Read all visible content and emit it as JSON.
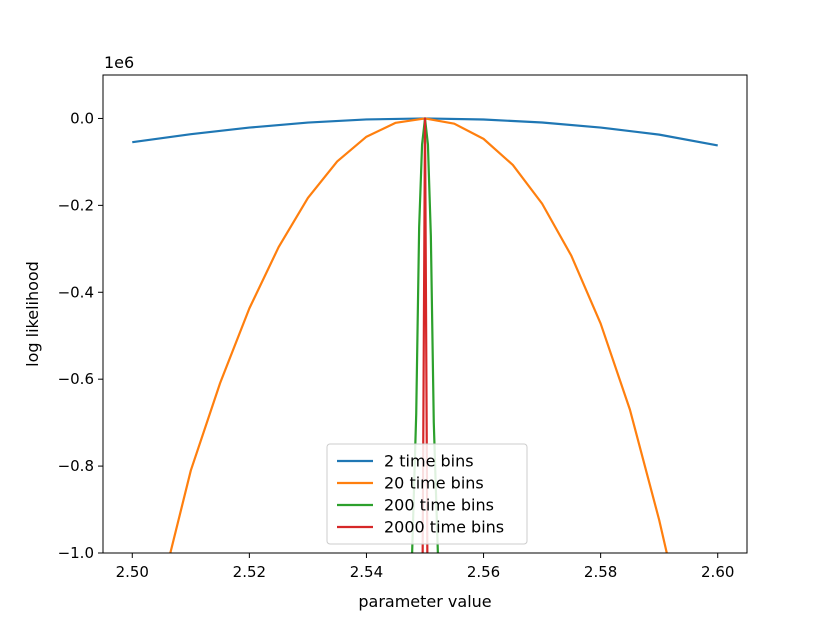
{
  "chart_data": {
    "type": "line",
    "title": "",
    "xlabel": "parameter value",
    "ylabel": "log likelihood",
    "y_offset_label": "1e6",
    "xlim": [
      2.495,
      2.605
    ],
    "ylim": [
      -1.0,
      0.1
    ],
    "x_ticks": [
      2.5,
      2.52,
      2.54,
      2.56,
      2.58,
      2.6
    ],
    "x_tick_labels": [
      "2.50",
      "2.52",
      "2.54",
      "2.56",
      "2.58",
      "2.60"
    ],
    "y_ticks": [
      0.0,
      -0.2,
      -0.4,
      -0.6,
      -0.8,
      -1.0
    ],
    "y_tick_labels": [
      "0.0",
      "−0.2",
      "−0.4",
      "−0.6",
      "−0.8",
      "−1.0"
    ],
    "grid": false,
    "legend_position": "lower center",
    "series": [
      {
        "name": "2 time bins",
        "color": "#1f77b4",
        "x": [
          2.5,
          2.51,
          2.52,
          2.53,
          2.54,
          2.55,
          2.56,
          2.57,
          2.58,
          2.59,
          2.6
        ],
        "y": [
          -0.0547,
          -0.0362,
          -0.021,
          -0.0094,
          -0.0023,
          0.0,
          -0.0024,
          -0.0093,
          -0.0209,
          -0.0372,
          -0.0621
        ]
      },
      {
        "name": "20 time bins",
        "color": "#ff7f0e",
        "x": [
          2.5065,
          2.51,
          2.515,
          2.52,
          2.525,
          2.53,
          2.535,
          2.54,
          2.545,
          2.55,
          2.555,
          2.56,
          2.565,
          2.57,
          2.575,
          2.58,
          2.585,
          2.59,
          2.5913
        ],
        "y": [
          -1.0,
          -0.81,
          -0.609,
          -0.437,
          -0.296,
          -0.183,
          -0.099,
          -0.042,
          -0.01,
          0.0,
          -0.012,
          -0.047,
          -0.107,
          -0.196,
          -0.316,
          -0.472,
          -0.67,
          -0.924,
          -1.0
        ],
        "clipped_below_ylim": true
      },
      {
        "name": "200 time bins",
        "color": "#2ca02c",
        "x": [
          2.5478,
          2.5485,
          2.549,
          2.5495,
          2.55,
          2.5505,
          2.551,
          2.5515,
          2.5522
        ],
        "y": [
          -1.0,
          -0.68,
          -0.25,
          -0.06,
          0.0,
          -0.06,
          -0.27,
          -0.7,
          -1.0
        ],
        "clipped_below_ylim": true
      },
      {
        "name": "2000 time bins",
        "color": "#d62728",
        "x": [
          2.5496,
          2.55,
          2.5504
        ],
        "y": [
          -1.0,
          0.0,
          -1.0
        ],
        "clipped_below_ylim": true
      }
    ]
  }
}
